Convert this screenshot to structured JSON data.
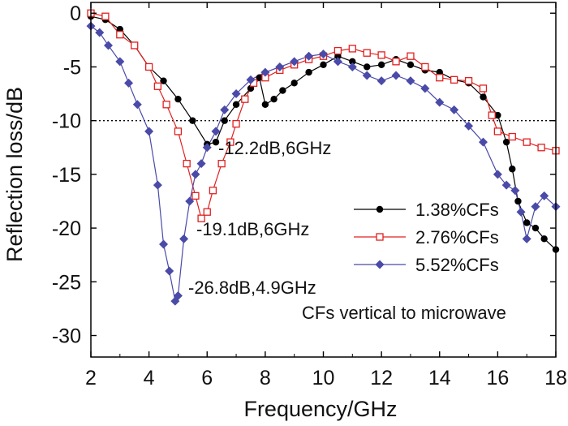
{
  "chart_data": {
    "type": "line",
    "title": "",
    "xlabel": "Frequency/GHz",
    "ylabel": "Reflection loss/dB",
    "xlim": [
      2,
      18
    ],
    "ylim": [
      -32,
      1
    ],
    "xticks": [
      2,
      4,
      6,
      8,
      10,
      12,
      14,
      16,
      18
    ],
    "yticks": [
      0,
      -5,
      -10,
      -15,
      -20,
      -25,
      -30
    ],
    "reference_line": {
      "y": -10,
      "style": "dotted"
    },
    "legend_position": "right-middle",
    "note": "CFs vertical to microwave",
    "series": [
      {
        "name": "1.38%CFs",
        "color": "#000000",
        "marker": "circle",
        "x": [
          2.0,
          2.5,
          3.0,
          3.5,
          4.0,
          4.5,
          5.0,
          5.5,
          6.0,
          6.3,
          6.6,
          7.0,
          7.5,
          7.8,
          8.0,
          8.3,
          8.6,
          9.0,
          9.5,
          10.0,
          10.5,
          11.0,
          11.5,
          12.0,
          12.5,
          13.0,
          13.5,
          14.0,
          14.5,
          15.0,
          15.5,
          16.0,
          16.3,
          16.5,
          16.7,
          17.0,
          17.3,
          17.6,
          18.0
        ],
        "y": [
          -0.3,
          -0.6,
          -1.5,
          -3.0,
          -5.0,
          -6.3,
          -8.0,
          -10.0,
          -12.2,
          -12.0,
          -10.0,
          -8.5,
          -7.0,
          -6.0,
          -8.5,
          -8.0,
          -7.2,
          -6.5,
          -5.5,
          -4.8,
          -4.0,
          -4.5,
          -5.0,
          -4.8,
          -4.3,
          -4.8,
          -5.3,
          -5.5,
          -6.2,
          -6.5,
          -7.8,
          -9.5,
          -12.0,
          -14.5,
          -17.5,
          -19.5,
          -20.0,
          -21.0,
          -22.0
        ]
      },
      {
        "name": "2.76%CFs",
        "color": "#e02020",
        "marker": "square-open",
        "x": [
          2.0,
          2.5,
          3.0,
          3.5,
          4.0,
          4.3,
          4.6,
          5.0,
          5.3,
          5.6,
          5.8,
          6.0,
          6.2,
          6.5,
          6.8,
          7.0,
          7.3,
          7.6,
          8.0,
          8.5,
          9.0,
          9.5,
          10.0,
          10.5,
          11.0,
          11.5,
          12.0,
          12.5,
          13.0,
          13.5,
          14.0,
          14.5,
          15.0,
          15.5,
          15.8,
          16.0,
          16.5,
          17.0,
          17.5,
          18.0
        ],
        "y": [
          0.0,
          -0.3,
          -2.0,
          -3.0,
          -5.0,
          -6.8,
          -8.5,
          -11.0,
          -14.0,
          -17.0,
          -19.1,
          -18.5,
          -16.5,
          -14.0,
          -12.0,
          -10.3,
          -8.0,
          -6.5,
          -6.0,
          -5.3,
          -4.8,
          -4.3,
          -4.0,
          -3.5,
          -3.3,
          -3.7,
          -3.9,
          -4.5,
          -4.0,
          -5.0,
          -6.0,
          -6.2,
          -6.3,
          -7.0,
          -9.5,
          -11.0,
          -11.5,
          -12.0,
          -12.5,
          -12.8
        ]
      },
      {
        "name": "5.52%CFs",
        "color": "#4a4aa8",
        "marker": "diamond",
        "x": [
          2.0,
          2.3,
          2.6,
          3.0,
          3.3,
          3.6,
          4.0,
          4.3,
          4.5,
          4.7,
          4.9,
          5.0,
          5.2,
          5.4,
          5.6,
          5.8,
          6.0,
          6.3,
          6.6,
          7.0,
          7.5,
          8.0,
          8.5,
          9.0,
          9.5,
          10.0,
          10.5,
          11.0,
          11.5,
          12.0,
          12.5,
          13.0,
          13.5,
          14.0,
          14.5,
          15.0,
          15.5,
          16.0,
          16.3,
          16.6,
          16.8,
          17.0,
          17.3,
          17.6,
          18.0
        ],
        "y": [
          -1.2,
          -1.8,
          -3.0,
          -4.5,
          -6.5,
          -8.5,
          -11.0,
          -16.0,
          -21.5,
          -24.0,
          -26.8,
          -26.3,
          -21.0,
          -17.5,
          -15.0,
          -14.0,
          -12.5,
          -11.0,
          -9.0,
          -7.5,
          -6.2,
          -5.5,
          -5.0,
          -4.5,
          -4.0,
          -3.8,
          -4.5,
          -5.0,
          -5.8,
          -6.3,
          -5.8,
          -6.3,
          -7.0,
          -8.3,
          -9.0,
          -10.5,
          -12.0,
          -15.0,
          -16.0,
          -16.5,
          -18.5,
          -21.0,
          -18.0,
          -17.0,
          -18.0
        ]
      }
    ],
    "annotations": [
      {
        "text": "-12.2dB,6GHz",
        "x": 6.0,
        "y": -12.2
      },
      {
        "text": "-19.1dB,6GHz",
        "x": 5.8,
        "y": -19.1
      },
      {
        "text": "-26.8dB,4.9GHz",
        "x": 4.9,
        "y": -26.8
      }
    ]
  }
}
